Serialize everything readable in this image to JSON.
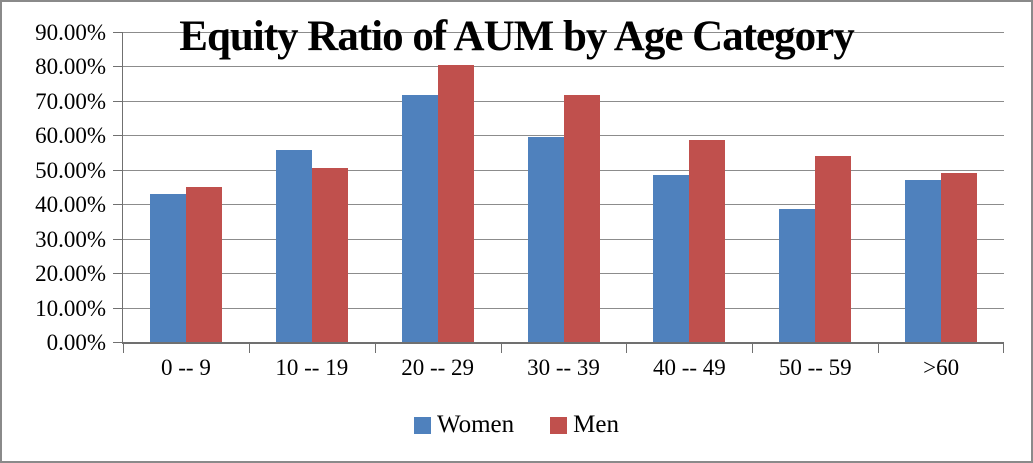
{
  "chart_data": {
    "type": "bar",
    "title": "Equity Ratio of AUM by Age Category",
    "categories": [
      "0 -- 9",
      "10 -- 19",
      "20 -- 29",
      "30 -- 39",
      "40 -- 49",
      "50 -- 59",
      ">60"
    ],
    "series": [
      {
        "name": "Women",
        "color": "#4F81BD",
        "values": [
          43.3,
          55.9,
          71.9,
          59.8,
          48.7,
          38.8,
          47.4
        ]
      },
      {
        "name": "Men",
        "color": "#C0504D",
        "values": [
          45.3,
          50.9,
          80.7,
          71.9,
          59.0,
          54.4,
          49.5
        ]
      }
    ],
    "y_axis": {
      "min": 0,
      "max": 90,
      "step": 10,
      "tick_labels": [
        "0.00%",
        "10.00%",
        "20.00%",
        "30.00%",
        "40.00%",
        "50.00%",
        "60.00%",
        "70.00%",
        "80.00%",
        "90.00%"
      ]
    },
    "xlabel": "",
    "ylabel": "",
    "grid": true,
    "legend_position": "bottom"
  },
  "colors": {
    "women_bar": "#4F81BD",
    "men_bar": "#C0504D",
    "gridline": "#8c8c8c",
    "axis": "#707070",
    "frame_border": "#8a8a8a",
    "text": "#000000"
  }
}
